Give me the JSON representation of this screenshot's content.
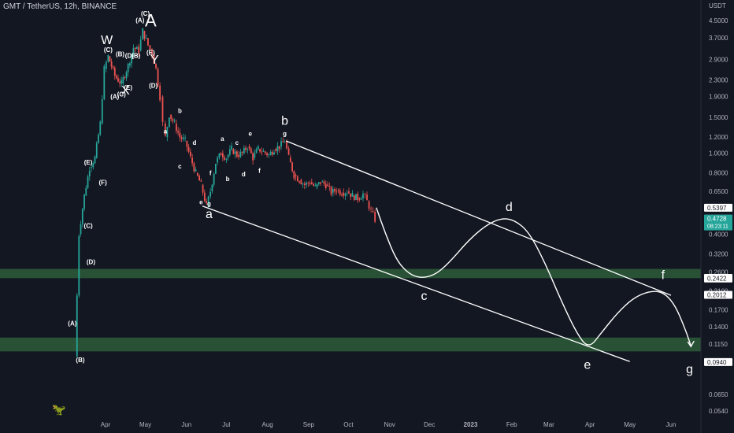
{
  "header": {
    "symbol_title": "GMT / TetherUS, 12h, BINANCE",
    "currency": "USDT"
  },
  "chart_data": {
    "type": "line",
    "x_axis_labels": [
      "Apr",
      "May",
      "Jun",
      "Jul",
      "Aug",
      "Sep",
      "Oct",
      "Nov",
      "Dec",
      "2023",
      "Feb",
      "Mar",
      "Apr",
      "May",
      "Jun"
    ],
    "y_axis_labels": [
      "4.5000",
      "3.7000",
      "2.9000",
      "2.3000",
      "1.9000",
      "1.5000",
      "1.2000",
      "1.0000",
      "0.8000",
      "0.6500",
      "0.4000",
      "0.3200",
      "0.2600",
      "0.2100",
      "0.1700",
      "0.1400",
      "0.1150",
      "0.0650",
      "0.0540"
    ],
    "y_scale": "log",
    "price_tags": [
      {
        "value": "0.5397",
        "style": "white"
      },
      {
        "value": "0.4760",
        "style": "white"
      },
      {
        "value": "0.4728",
        "style": "green",
        "timer": "08:23:11"
      },
      {
        "value": "0.2437",
        "style": "white"
      },
      {
        "value": "0.2422",
        "style": "white"
      },
      {
        "value": "0.2012",
        "style": "white"
      },
      {
        "value": "0.0940",
        "style": "white"
      }
    ],
    "zones": [
      {
        "from": 0.243,
        "to": 0.27,
        "color": "#2e5c3a"
      },
      {
        "from": 0.106,
        "to": 0.124,
        "color": "#2e5c3a"
      }
    ],
    "price_path": [
      [
        "2022-03-09",
        0.1
      ],
      [
        "2022-03-12",
        0.4
      ],
      [
        "2022-03-16",
        0.62
      ],
      [
        "2022-03-20",
        0.85
      ],
      [
        "2022-03-24",
        0.95
      ],
      [
        "2022-03-28",
        1.4
      ],
      [
        "2022-03-31",
        2.6
      ],
      [
        "2022-04-03",
        3.0
      ],
      [
        "2022-04-08",
        2.4
      ],
      [
        "2022-04-13",
        2.2
      ],
      [
        "2022-04-18",
        2.7
      ],
      [
        "2022-04-22",
        3.3
      ],
      [
        "2022-04-26",
        3.2
      ],
      [
        "2022-04-29",
        4.0
      ],
      [
        "2022-05-03",
        3.4
      ],
      [
        "2022-05-06",
        3.1
      ],
      [
        "2022-05-09",
        2.6
      ],
      [
        "2022-05-12",
        1.9
      ],
      [
        "2022-05-14",
        1.4
      ],
      [
        "2022-05-16",
        1.2
      ],
      [
        "2022-05-19",
        1.55
      ],
      [
        "2022-05-23",
        1.4
      ],
      [
        "2022-05-27",
        1.2
      ],
      [
        "2022-05-31",
        1.15
      ],
      [
        "2022-06-04",
        0.95
      ],
      [
        "2022-06-08",
        0.8
      ],
      [
        "2022-06-12",
        0.7
      ],
      [
        "2022-06-16",
        0.55
      ],
      [
        "2022-06-19",
        0.65
      ],
      [
        "2022-06-23",
        0.9
      ],
      [
        "2022-06-27",
        1.0
      ],
      [
        "2022-07-01",
        0.95
      ],
      [
        "2022-07-05",
        1.05
      ],
      [
        "2022-07-09",
        0.98
      ],
      [
        "2022-07-13",
        1.0
      ],
      [
        "2022-07-17",
        1.08
      ],
      [
        "2022-07-21",
        0.95
      ],
      [
        "2022-07-25",
        1.05
      ],
      [
        "2022-07-29",
        1.02
      ],
      [
        "2022-08-02",
        0.98
      ],
      [
        "2022-08-06",
        1.05
      ],
      [
        "2022-08-10",
        1.08
      ],
      [
        "2022-08-14",
        1.15
      ],
      [
        "2022-08-17",
        0.95
      ],
      [
        "2022-08-21",
        0.78
      ],
      [
        "2022-08-25",
        0.74
      ],
      [
        "2022-08-29",
        0.7
      ],
      [
        "2022-09-02",
        0.72
      ],
      [
        "2022-09-06",
        0.68
      ],
      [
        "2022-09-10",
        0.72
      ],
      [
        "2022-09-14",
        0.7
      ],
      [
        "2022-09-18",
        0.64
      ],
      [
        "2022-09-22",
        0.66
      ],
      [
        "2022-09-26",
        0.64
      ],
      [
        "2022-09-30",
        0.65
      ],
      [
        "2022-10-04",
        0.62
      ],
      [
        "2022-10-08",
        0.6
      ],
      [
        "2022-10-12",
        0.63
      ],
      [
        "2022-10-15",
        0.58
      ],
      [
        "2022-10-18",
        0.52
      ],
      [
        "2022-10-21",
        0.4728
      ]
    ],
    "channel_lines": [
      {
        "from": [
          "2022-08-15",
          1.15
        ],
        "to": [
          "2023-06-01",
          0.2
        ]
      },
      {
        "from": [
          "2022-06-13",
          0.55
        ],
        "to": [
          "2023-05-01",
          0.0945
        ]
      }
    ],
    "projection": [
      [
        "2022-10-22",
        0.54
      ],
      [
        "2022-10-29",
        0.4
      ],
      [
        "2022-11-06",
        0.3
      ],
      [
        "2022-11-14",
        0.26
      ],
      [
        "2022-11-22",
        0.245
      ],
      [
        "2022-11-30",
        0.246
      ],
      [
        "2022-12-08",
        0.26
      ],
      [
        "2022-12-18",
        0.3
      ],
      [
        "2022-12-30",
        0.37
      ],
      [
        "2023-01-12",
        0.44
      ],
      [
        "2023-01-24",
        0.48
      ],
      [
        "2023-02-03",
        0.47
      ],
      [
        "2023-02-14",
        0.41
      ],
      [
        "2023-02-26",
        0.29
      ],
      [
        "2023-03-10",
        0.19
      ],
      [
        "2023-03-22",
        0.13
      ],
      [
        "2023-03-31",
        0.109
      ],
      [
        "2023-04-10",
        0.132
      ],
      [
        "2023-04-22",
        0.165
      ],
      [
        "2023-05-04",
        0.195
      ],
      [
        "2023-05-16",
        0.21
      ],
      [
        "2023-05-26",
        0.208
      ],
      [
        "2023-06-04",
        0.18
      ],
      [
        "2023-06-12",
        0.135
      ],
      [
        "2023-06-16",
        0.113
      ]
    ],
    "wave_labels": [
      {
        "text": "A",
        "x": "2022-05-05",
        "y": 4.2,
        "size": "big"
      },
      {
        "text": "W",
        "x": "2022-04-02",
        "y": 3.45,
        "size": "mid"
      },
      {
        "text": "X",
        "x": "2022-04-16",
        "y": 1.95,
        "size": "mid"
      },
      {
        "text": "Y",
        "x": "2022-05-08",
        "y": 2.75,
        "size": "mid"
      },
      {
        "text": "(A)",
        "x": "2022-04-27",
        "y": 4.4,
        "size": "small"
      },
      {
        "text": "(C)",
        "x": "2022-05-01",
        "y": 4.75,
        "size": "small"
      },
      {
        "text": "(E)",
        "x": "2022-05-05",
        "y": 3.05,
        "size": "small"
      },
      {
        "text": "(B)",
        "x": "2022-04-12",
        "y": 3.0,
        "size": "small"
      },
      {
        "text": "(D)",
        "x": "2022-04-19",
        "y": 2.95,
        "size": "small"
      },
      {
        "text": "(B)",
        "x": "2022-04-24",
        "y": 2.95,
        "size": "small"
      },
      {
        "text": "(C)",
        "x": "2022-04-03",
        "y": 3.15,
        "size": "small"
      },
      {
        "text": "(A)",
        "x": "2022-04-08",
        "y": 1.85,
        "size": "small"
      },
      {
        "text": "(C)",
        "x": "2022-04-13",
        "y": 1.9,
        "size": "small"
      },
      {
        "text": "(E)",
        "x": "2022-04-18",
        "y": 2.05,
        "size": "small"
      },
      {
        "text": "(D)",
        "x": "2022-05-07",
        "y": 2.1,
        "size": "small"
      },
      {
        "text": "(E)",
        "x": "2022-03-19",
        "y": 0.88,
        "size": "small"
      },
      {
        "text": "(F)",
        "x": "2022-03-30",
        "y": 0.7,
        "size": "small"
      },
      {
        "text": "(C)",
        "x": "2022-03-19",
        "y": 0.43,
        "size": "small"
      },
      {
        "text": "(D)",
        "x": "2022-03-21",
        "y": 0.285,
        "size": "small"
      },
      {
        "text": "(A)",
        "x": "2022-03-07",
        "y": 0.142,
        "size": "small"
      },
      {
        "text": "(B)",
        "x": "2022-03-13",
        "y": 0.094,
        "size": "small"
      },
      {
        "text": "a",
        "x": "2022-05-16",
        "y": 1.25,
        "size": "small"
      },
      {
        "text": "b",
        "x": "2022-05-27",
        "y": 1.58,
        "size": "small"
      },
      {
        "text": "c",
        "x": "2022-05-27",
        "y": 0.84,
        "size": "small"
      },
      {
        "text": "d",
        "x": "2022-06-07",
        "y": 1.1,
        "size": "small"
      },
      {
        "text": "e",
        "x": "2022-06-12",
        "y": 0.56,
        "size": "small"
      },
      {
        "text": "f",
        "x": "2022-06-19",
        "y": 0.78,
        "size": "small"
      },
      {
        "text": "g",
        "x": "2022-06-18",
        "y": 0.55,
        "size": "small"
      },
      {
        "text": "a",
        "x": "2022-06-18",
        "y": 0.48,
        "size": "mid"
      },
      {
        "text": "a",
        "x": "2022-06-28",
        "y": 1.15,
        "size": "small"
      },
      {
        "text": "c",
        "x": "2022-07-09",
        "y": 1.1,
        "size": "small"
      },
      {
        "text": "e",
        "x": "2022-07-19",
        "y": 1.22,
        "size": "small"
      },
      {
        "text": "b",
        "x": "2022-07-02",
        "y": 0.73,
        "size": "small"
      },
      {
        "text": "d",
        "x": "2022-07-14",
        "y": 0.77,
        "size": "small"
      },
      {
        "text": "f",
        "x": "2022-07-26",
        "y": 0.8,
        "size": "small"
      },
      {
        "text": "b",
        "x": "2022-08-14",
        "y": 1.38,
        "size": "mid"
      },
      {
        "text": "g",
        "x": "2022-08-14",
        "y": 1.22,
        "size": "small"
      },
      {
        "text": "c",
        "x": "2022-11-27",
        "y": 0.19,
        "size": "mid"
      },
      {
        "text": "d",
        "x": "2023-01-30",
        "y": 0.52,
        "size": "mid"
      },
      {
        "text": "e",
        "x": "2023-03-30",
        "y": 0.087,
        "size": "mid"
      },
      {
        "text": "f",
        "x": "2023-05-26",
        "y": 0.24,
        "size": "mid"
      },
      {
        "text": "g",
        "x": "2023-06-15",
        "y": 0.083,
        "size": "mid"
      }
    ]
  }
}
